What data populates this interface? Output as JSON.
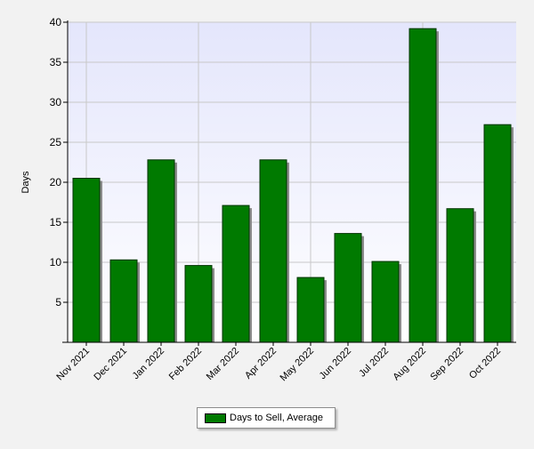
{
  "chart_data": {
    "type": "bar",
    "title": "",
    "xlabel": "",
    "ylabel": "Days",
    "ylim": [
      0,
      40
    ],
    "yticks": [
      5,
      10,
      15,
      20,
      25,
      30,
      35,
      40
    ],
    "grid": true,
    "legend_position": "bottom-center",
    "categories": [
      "Nov 2021",
      "Dec 2021",
      "Jan 2022",
      "Feb 2022",
      "Mar 2022",
      "Apr 2022",
      "May 2022",
      "Jun 2022",
      "Jul 2022",
      "Aug 2022",
      "Sep 2022",
      "Oct 2022"
    ],
    "series": [
      {
        "name": "Days to Sell, Average",
        "color": "#007a00",
        "values": [
          20.5,
          10.3,
          22.8,
          9.6,
          17.1,
          22.8,
          8.1,
          13.6,
          10.1,
          39.2,
          16.7,
          27.2
        ]
      }
    ]
  },
  "colors": {
    "plot_top": "#e4e6fc",
    "plot_bottom": "#ffffff",
    "grid": "#c8c8c8",
    "bar_border": "#003300",
    "bar_shadow": "#8c8c8c"
  }
}
